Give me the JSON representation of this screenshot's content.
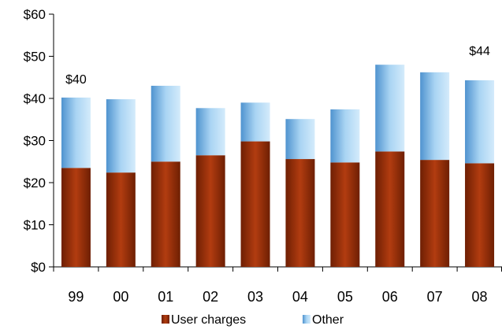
{
  "chart_data": {
    "type": "bar",
    "stacked": true,
    "categories": [
      "99",
      "00",
      "01",
      "02",
      "03",
      "04",
      "05",
      "06",
      "07",
      "08"
    ],
    "series": [
      {
        "name": "User charges",
        "values": [
          23.5,
          22.4,
          25.0,
          26.5,
          29.8,
          25.6,
          24.8,
          27.4,
          25.4,
          24.6
        ],
        "color": "#8b2a06",
        "gradient": [
          "#6e1f03",
          "#b23c10",
          "#6e1f03"
        ]
      },
      {
        "name": "Other",
        "values": [
          16.7,
          17.4,
          18.0,
          11.2,
          9.2,
          9.5,
          12.6,
          20.6,
          20.8,
          19.7
        ],
        "color": "#8fc3ea",
        "gradient": [
          "#4f93cf",
          "#a9d4f3",
          "#d4ebfb"
        ]
      }
    ],
    "y_ticks": [
      "$0",
      "$10",
      "$20",
      "$30",
      "$40",
      "$50",
      "$60"
    ],
    "ylim": [
      0,
      60
    ],
    "grid": false,
    "legend": "bottom",
    "annotations": [
      {
        "text": "$40",
        "category": "99",
        "value": 40
      },
      {
        "text": "$44",
        "category": "08",
        "value": 44
      }
    ]
  }
}
